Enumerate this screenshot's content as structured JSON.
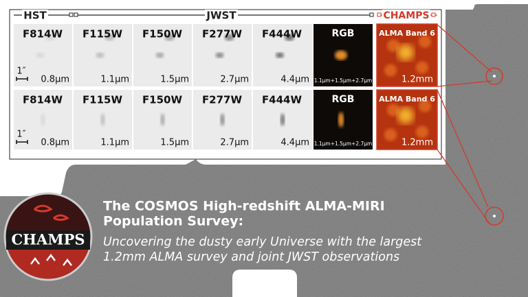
{
  "header": {
    "hst": "HST",
    "jwst": "JWST",
    "champs": "CHAMPS"
  },
  "rows": [
    {
      "scale_label": "1″",
      "panels": [
        {
          "label": "F814W",
          "wavelength": "0.8μm"
        },
        {
          "label": "F115W",
          "wavelength": "1.1μm"
        },
        {
          "label": "F150W",
          "wavelength": "1.5μm"
        },
        {
          "label": "F277W",
          "wavelength": "2.7μm"
        },
        {
          "label": "F444W",
          "wavelength": "4.4μm"
        },
        {
          "label": "RGB",
          "wavelength": "1.1μm+1.5μm+2.7μm"
        },
        {
          "label": "ALMA Band 6",
          "wavelength": "1.2mm"
        }
      ]
    },
    {
      "scale_label": "1″",
      "panels": [
        {
          "label": "F814W",
          "wavelength": "0.8μm"
        },
        {
          "label": "F115W",
          "wavelength": "1.1μm"
        },
        {
          "label": "F150W",
          "wavelength": "1.5μm"
        },
        {
          "label": "F277W",
          "wavelength": "2.7μm"
        },
        {
          "label": "F444W",
          "wavelength": "4.4μm"
        },
        {
          "label": "RGB",
          "wavelength": "1.1μm+1.5μm+2.7μm"
        },
        {
          "label": "ALMA Band 6",
          "wavelength": "1.2mm"
        }
      ]
    }
  ],
  "logo": {
    "text": "CHAMPS"
  },
  "title": {
    "lines": [
      "The COSMOS High-redshift ALMA-MIRI",
      "Population Survey:"
    ]
  },
  "subtitle": {
    "lines": [
      "Uncovering the dusty early Universe with the largest",
      "1.2mm ALMA survey and joint JWST observations"
    ]
  }
}
